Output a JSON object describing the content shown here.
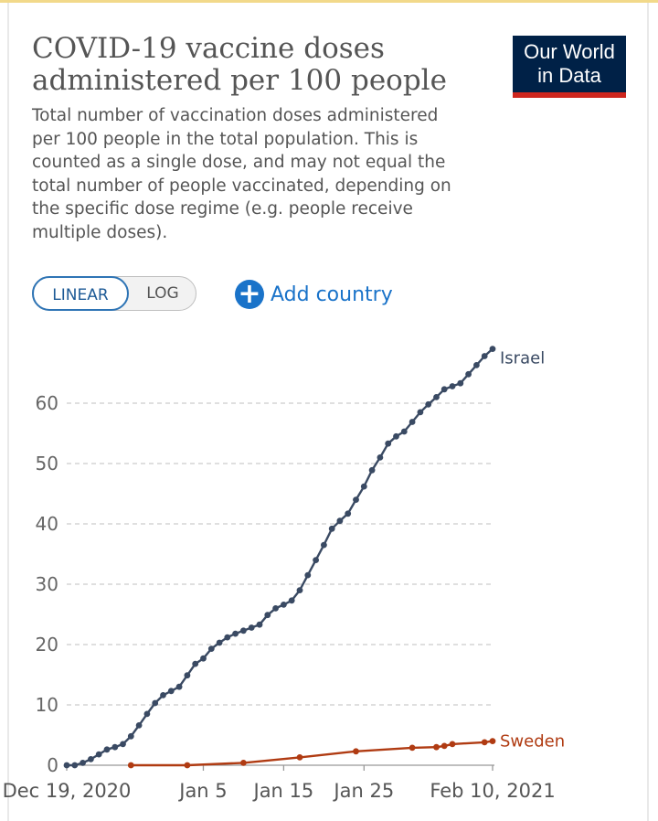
{
  "header": {
    "title": "COVID-19 vaccine doses administered per 100 people",
    "subtitle": "Total number of vaccination doses administered per 100 people in the total population. This is counted as a single dose, and may not equal the total number of people vaccinated, depending on the specific dose regime (e.g. people receive multiple doses).",
    "logo_line1": "Our World",
    "logo_line2": "in Data"
  },
  "controls": {
    "linear_label": "LINEAR",
    "log_label": "LOG",
    "add_country_label": "Add country",
    "scale_selected": "LINEAR"
  },
  "colors": {
    "israel": "#3a4a63",
    "sweden": "#b03b12",
    "grid": "#cccccc",
    "axis": "#999999",
    "accent": "#1a73c9"
  },
  "chart_data": {
    "type": "line",
    "title": "COVID-19 vaccine doses administered per 100 people",
    "xlabel": "",
    "ylabel": "",
    "x_range": [
      "2020-12-19",
      "2021-02-10"
    ],
    "ylim": [
      0,
      69
    ],
    "y_ticks": [
      0,
      10,
      20,
      30,
      40,
      50,
      60
    ],
    "x_tick_labels": [
      {
        "date": "2020-12-19",
        "label": "Dec 19, 2020"
      },
      {
        "date": "2021-01-05",
        "label": "Jan 5"
      },
      {
        "date": "2021-01-15",
        "label": "Jan 15"
      },
      {
        "date": "2021-01-25",
        "label": "Jan 25"
      },
      {
        "date": "2021-02-10",
        "label": "Feb 10, 2021"
      }
    ],
    "grid": "horizontal dashed",
    "legend": "inline labels at line ends",
    "series": [
      {
        "name": "Israel",
        "color": "#3a4a63",
        "points": [
          [
            "2020-12-19",
            0.0
          ],
          [
            "2020-12-20",
            0.0
          ],
          [
            "2020-12-21",
            0.4
          ],
          [
            "2020-12-22",
            1.0
          ],
          [
            "2020-12-23",
            1.8
          ],
          [
            "2020-12-24",
            2.6
          ],
          [
            "2020-12-25",
            3.0
          ],
          [
            "2020-12-26",
            3.5
          ],
          [
            "2020-12-27",
            4.8
          ],
          [
            "2020-12-28",
            6.6
          ],
          [
            "2020-12-29",
            8.5
          ],
          [
            "2020-12-30",
            10.3
          ],
          [
            "2020-12-31",
            11.6
          ],
          [
            "2021-01-01",
            12.3
          ],
          [
            "2021-01-02",
            13.0
          ],
          [
            "2021-01-03",
            14.9
          ],
          [
            "2021-01-04",
            16.8
          ],
          [
            "2021-01-05",
            17.7
          ],
          [
            "2021-01-06",
            19.3
          ],
          [
            "2021-01-07",
            20.3
          ],
          [
            "2021-01-08",
            21.2
          ],
          [
            "2021-01-09",
            21.8
          ],
          [
            "2021-01-10",
            22.3
          ],
          [
            "2021-01-11",
            22.8
          ],
          [
            "2021-01-12",
            23.3
          ],
          [
            "2021-01-13",
            24.9
          ],
          [
            "2021-01-14",
            26.0
          ],
          [
            "2021-01-15",
            26.6
          ],
          [
            "2021-01-16",
            27.3
          ],
          [
            "2021-01-17",
            29.0
          ],
          [
            "2021-01-18",
            31.5
          ],
          [
            "2021-01-19",
            34.0
          ],
          [
            "2021-01-20",
            36.5
          ],
          [
            "2021-01-21",
            39.2
          ],
          [
            "2021-01-22",
            40.5
          ],
          [
            "2021-01-23",
            41.7
          ],
          [
            "2021-01-24",
            44.0
          ],
          [
            "2021-01-25",
            46.2
          ],
          [
            "2021-01-26",
            48.9
          ],
          [
            "2021-01-27",
            51.0
          ],
          [
            "2021-01-28",
            53.3
          ],
          [
            "2021-01-29",
            54.5
          ],
          [
            "2021-01-30",
            55.3
          ],
          [
            "2021-01-31",
            56.9
          ],
          [
            "2021-02-01",
            58.5
          ],
          [
            "2021-02-02",
            59.8
          ],
          [
            "2021-02-03",
            61.0
          ],
          [
            "2021-02-04",
            62.3
          ],
          [
            "2021-02-05",
            62.8
          ],
          [
            "2021-02-06",
            63.3
          ],
          [
            "2021-02-07",
            64.8
          ],
          [
            "2021-02-08",
            66.3
          ],
          [
            "2021-02-09",
            67.8
          ],
          [
            "2021-02-10",
            69.0
          ]
        ]
      },
      {
        "name": "Sweden",
        "color": "#b03b12",
        "points": [
          [
            "2020-12-27",
            0.0
          ],
          [
            "2021-01-03",
            0.0
          ],
          [
            "2021-01-10",
            0.4
          ],
          [
            "2021-01-17",
            1.3
          ],
          [
            "2021-01-24",
            2.3
          ],
          [
            "2021-01-31",
            2.9
          ],
          [
            "2021-02-03",
            3.0
          ],
          [
            "2021-02-04",
            3.2
          ],
          [
            "2021-02-05",
            3.5
          ],
          [
            "2021-02-09",
            3.8
          ],
          [
            "2021-02-10",
            4.0
          ]
        ]
      }
    ]
  }
}
